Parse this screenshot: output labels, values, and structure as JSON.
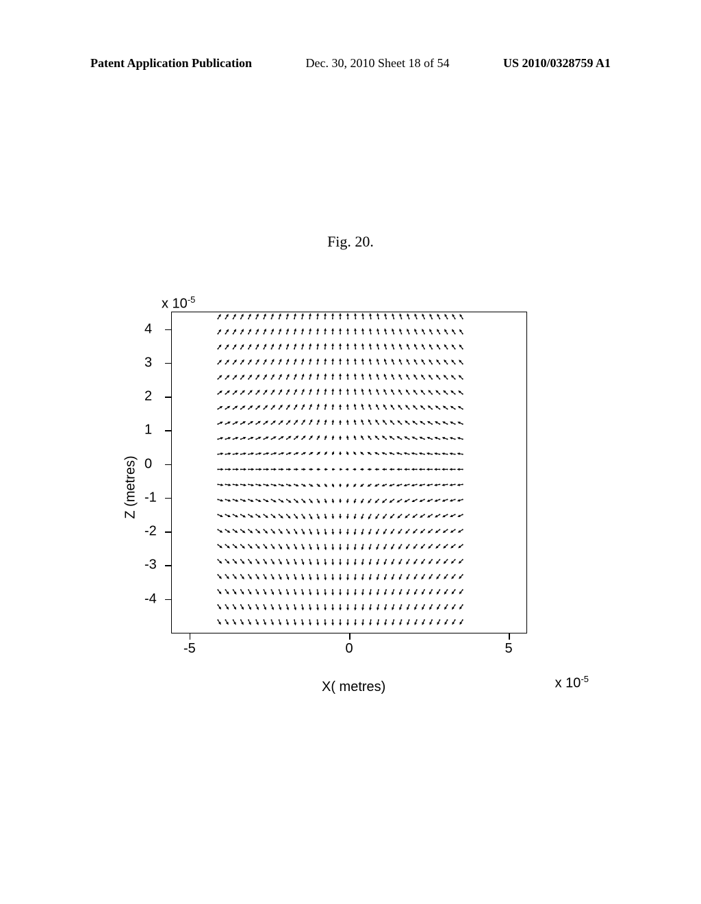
{
  "header": {
    "left": "Patent Application Publication",
    "center": "Dec. 30, 2010  Sheet 18 of 54",
    "right": "US 2010/0328759 A1"
  },
  "figure_caption": "Fig. 20.",
  "chart": {
    "type": "vector-field",
    "y_exponent": "x 10",
    "y_exponent_sup": "-5",
    "x_exponent": "x 10",
    "x_exponent_sup": "-5",
    "y_label": "Z (metres)",
    "x_label": "X( metres)",
    "y_ticks": [
      {
        "pos": 5.3,
        "label": "4"
      },
      {
        "pos": 15.8,
        "label": "3"
      },
      {
        "pos": 26.3,
        "label": "2"
      },
      {
        "pos": 36.8,
        "label": "1"
      },
      {
        "pos": 47.4,
        "label": "0"
      },
      {
        "pos": 57.9,
        "label": "-1"
      },
      {
        "pos": 68.4,
        "label": "-2"
      },
      {
        "pos": 78.9,
        "label": "-3"
      },
      {
        "pos": 89.5,
        "label": "-4"
      }
    ],
    "x_ticks": [
      {
        "pos": 5,
        "label": "-5"
      },
      {
        "pos": 50,
        "label": "0"
      },
      {
        "pos": 95,
        "label": "5"
      }
    ],
    "grid": {
      "rows": 21,
      "cols": 33,
      "x_start_pct": 13,
      "x_end_pct": 82,
      "y_start_pct": 2,
      "y_end_pct": 96
    },
    "colors": {
      "background": "#ffffff",
      "axis": "#000000",
      "vector": "#000000"
    },
    "arrow_length": 7,
    "arrow_head": 3
  }
}
